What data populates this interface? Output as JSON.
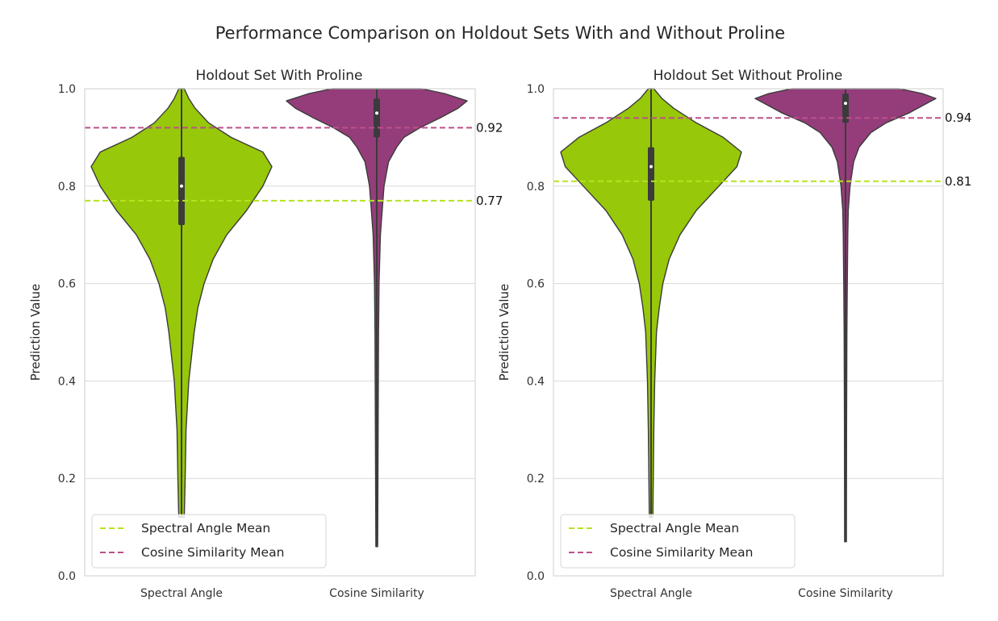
{
  "figure": {
    "suptitle": "Performance Comparison on Holdout Sets With and Without Proline"
  },
  "colors": {
    "spectral_angle": "#97C80A",
    "cosine_similarity": "#943D7A",
    "spectral_mean_line": "#B6E320",
    "cosine_mean_line": "#BD4F8B",
    "grid": "#D9D9D9",
    "box": "#3B3B3B"
  },
  "legend": {
    "spectral_label": "Spectral Angle Mean",
    "cosine_label": "Cosine Similarity Mean",
    "placement": "lower-left"
  },
  "chart_data": [
    {
      "type": "violin",
      "title": "Holdout Set With Proline",
      "ylabel": "Prediction Value",
      "ylim": [
        0.0,
        1.0
      ],
      "yticks": [
        "0.0",
        "0.2",
        "0.4",
        "0.6",
        "0.8",
        "1.0"
      ],
      "grid": true,
      "categories": [
        "Spectral Angle",
        "Cosine Similarity"
      ],
      "series": [
        {
          "name": "Spectral Angle",
          "min": 0.12,
          "max": 1.0,
          "q1": 0.72,
          "median": 0.8,
          "q3": 0.86,
          "whisker_low": 0.5,
          "whisker_high": 1.0,
          "profile": [
            [
              0.12,
              0.03
            ],
            [
              0.2,
              0.04
            ],
            [
              0.3,
              0.05
            ],
            [
              0.4,
              0.08
            ],
            [
              0.5,
              0.14
            ],
            [
              0.55,
              0.18
            ],
            [
              0.6,
              0.25
            ],
            [
              0.65,
              0.35
            ],
            [
              0.7,
              0.5
            ],
            [
              0.75,
              0.72
            ],
            [
              0.8,
              0.9
            ],
            [
              0.84,
              1.0
            ],
            [
              0.87,
              0.9
            ],
            [
              0.9,
              0.55
            ],
            [
              0.93,
              0.3
            ],
            [
              0.96,
              0.15
            ],
            [
              0.98,
              0.08
            ],
            [
              1.0,
              0.03
            ]
          ]
        },
        {
          "name": "Cosine Similarity",
          "min": 0.06,
          "max": 1.0,
          "q1": 0.9,
          "median": 0.95,
          "q3": 0.98,
          "whisker_low": 0.79,
          "whisker_high": 1.0,
          "profile": [
            [
              0.06,
              0.01
            ],
            [
              0.3,
              0.015
            ],
            [
              0.5,
              0.02
            ],
            [
              0.6,
              0.025
            ],
            [
              0.7,
              0.04
            ],
            [
              0.75,
              0.06
            ],
            [
              0.8,
              0.08
            ],
            [
              0.85,
              0.13
            ],
            [
              0.88,
              0.22
            ],
            [
              0.9,
              0.3
            ],
            [
              0.92,
              0.48
            ],
            [
              0.94,
              0.7
            ],
            [
              0.96,
              0.9
            ],
            [
              0.975,
              1.0
            ],
            [
              0.99,
              0.75
            ],
            [
              1.0,
              0.5
            ]
          ]
        }
      ],
      "means": [
        {
          "series": "Spectral Angle",
          "value": 0.77,
          "label": "0.77"
        },
        {
          "series": "Cosine Similarity",
          "value": 0.92,
          "label": "0.92"
        }
      ]
    },
    {
      "type": "violin",
      "title": "Holdout Set Without Proline",
      "ylabel": "Prediction Value",
      "ylim": [
        0.0,
        1.0
      ],
      "yticks": [
        "0.0",
        "0.2",
        "0.4",
        "0.6",
        "0.8",
        "1.0"
      ],
      "grid": true,
      "categories": [
        "Spectral Angle",
        "Cosine Similarity"
      ],
      "series": [
        {
          "name": "Spectral Angle",
          "min": 0.12,
          "max": 1.0,
          "q1": 0.77,
          "median": 0.84,
          "q3": 0.88,
          "whisker_low": 0.6,
          "whisker_high": 1.0,
          "profile": [
            [
              0.12,
              0.02
            ],
            [
              0.3,
              0.03
            ],
            [
              0.4,
              0.04
            ],
            [
              0.5,
              0.06
            ],
            [
              0.55,
              0.09
            ],
            [
              0.6,
              0.13
            ],
            [
              0.65,
              0.2
            ],
            [
              0.7,
              0.32
            ],
            [
              0.75,
              0.5
            ],
            [
              0.8,
              0.75
            ],
            [
              0.84,
              0.95
            ],
            [
              0.87,
              1.0
            ],
            [
              0.9,
              0.8
            ],
            [
              0.93,
              0.5
            ],
            [
              0.96,
              0.25
            ],
            [
              0.98,
              0.12
            ],
            [
              1.0,
              0.03
            ]
          ]
        },
        {
          "name": "Cosine Similarity",
          "min": 0.07,
          "max": 1.0,
          "q1": 0.93,
          "median": 0.97,
          "q3": 0.99,
          "whisker_low": 0.86,
          "whisker_high": 1.0,
          "profile": [
            [
              0.07,
              0.01
            ],
            [
              0.3,
              0.012
            ],
            [
              0.5,
              0.015
            ],
            [
              0.6,
              0.02
            ],
            [
              0.7,
              0.025
            ],
            [
              0.75,
              0.03
            ],
            [
              0.8,
              0.05
            ],
            [
              0.85,
              0.09
            ],
            [
              0.88,
              0.15
            ],
            [
              0.91,
              0.28
            ],
            [
              0.93,
              0.45
            ],
            [
              0.95,
              0.7
            ],
            [
              0.97,
              0.9
            ],
            [
              0.98,
              1.0
            ],
            [
              0.99,
              0.85
            ],
            [
              1.0,
              0.6
            ]
          ]
        }
      ],
      "means": [
        {
          "series": "Spectral Angle",
          "value": 0.81,
          "label": "0.81"
        },
        {
          "series": "Cosine Similarity",
          "value": 0.94,
          "label": "0.94"
        }
      ]
    }
  ]
}
